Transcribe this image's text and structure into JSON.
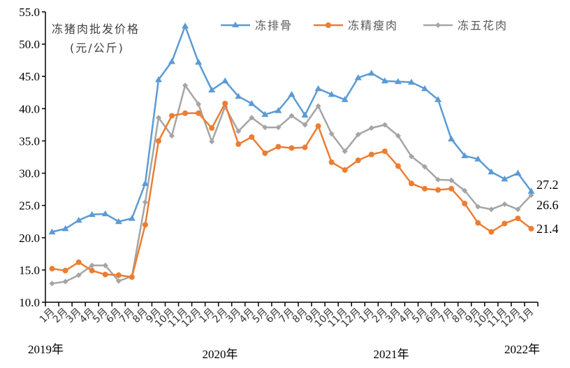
{
  "chart_data": {
    "type": "line",
    "title": "",
    "ylabel": "冻猪肉批发价格 (元/公斤)",
    "ylabel_lines": [
      "冻猪肉批发价格",
      "(元/公斤)"
    ],
    "xlabel": "",
    "ylim": [
      10.0,
      55.0
    ],
    "yticks": [
      "10.0",
      "15.0",
      "20.0",
      "25.0",
      "30.0",
      "35.0",
      "40.0",
      "45.0",
      "50.0",
      "55.0"
    ],
    "grid": false,
    "legend_position": "top",
    "categories": [
      "1月",
      "2月",
      "3月",
      "4月",
      "5月",
      "6月",
      "7月",
      "8月",
      "9月",
      "10月",
      "11月",
      "12月",
      "1月",
      "2月",
      "3月",
      "4月",
      "5月",
      "6月",
      "7月",
      "8月",
      "9月",
      "10月",
      "11月",
      "12月",
      "1月",
      "2月",
      "3月",
      "4月",
      "5月",
      "6月",
      "7月",
      "8月",
      "9月",
      "10月",
      "11月",
      "12月",
      "1月"
    ],
    "year_labels": [
      {
        "label": "2019年",
        "index": 0
      },
      {
        "label": "2020年",
        "index": 12
      },
      {
        "label": "2021年",
        "index": 24
      },
      {
        "label": "2022年",
        "index": 36
      }
    ],
    "series": [
      {
        "name": "冻排骨",
        "color": "#5B9BD5",
        "marker": "triangle",
        "values": [
          20.9,
          21.4,
          22.7,
          23.6,
          23.7,
          22.5,
          23.0,
          28.4,
          44.5,
          47.3,
          52.8,
          47.2,
          42.9,
          44.3,
          41.9,
          40.8,
          39.1,
          39.7,
          42.2,
          39.0,
          43.1,
          42.2,
          41.4,
          44.8,
          45.5,
          44.3,
          44.2,
          44.1,
          43.1,
          41.4,
          35.3,
          32.7,
          32.2,
          30.2,
          29.1,
          30.0,
          27.2
        ]
      },
      {
        "name": "冻精瘦肉",
        "color": "#ED7D31",
        "marker": "circle",
        "values": [
          15.2,
          14.9,
          16.2,
          14.9,
          14.3,
          14.2,
          13.9,
          22.0,
          35.0,
          38.9,
          39.3,
          39.3,
          37.0,
          40.8,
          34.5,
          35.6,
          33.1,
          34.1,
          33.9,
          34.0,
          37.3,
          31.7,
          30.5,
          32.0,
          32.9,
          33.4,
          31.1,
          28.4,
          27.6,
          27.4,
          27.6,
          25.3,
          22.3,
          20.9,
          22.2,
          23.0,
          21.4
        ]
      },
      {
        "name": "冻五花肉",
        "color": "#A5A5A5",
        "marker": "diamond",
        "values": [
          12.9,
          13.2,
          14.2,
          15.7,
          15.7,
          13.3,
          14.0,
          25.5,
          38.6,
          35.8,
          43.6,
          40.7,
          34.9,
          40.3,
          36.5,
          38.6,
          37.1,
          37.1,
          38.9,
          37.5,
          40.4,
          36.1,
          33.4,
          36.0,
          37.0,
          37.5,
          35.8,
          32.6,
          31.0,
          29.0,
          28.9,
          27.3,
          24.8,
          24.4,
          25.2,
          24.4,
          26.6
        ]
      }
    ],
    "annotations": [
      {
        "text": "27.2",
        "series": "冻排骨",
        "index": 36
      },
      {
        "text": "26.6",
        "series": "冻五花肉",
        "index": 36
      },
      {
        "text": "21.4",
        "series": "冻精瘦肉",
        "index": 36
      }
    ]
  },
  "legend": {
    "items": [
      "冻排骨",
      "冻精瘦肉",
      "冻五花肉"
    ]
  },
  "axis": {
    "ylabel_line1": "冻猪肉批发价格",
    "ylabel_line2": "(元/公斤)"
  },
  "end_labels": {
    "ribs": "27.2",
    "belly": "26.6",
    "lean": "21.4"
  }
}
